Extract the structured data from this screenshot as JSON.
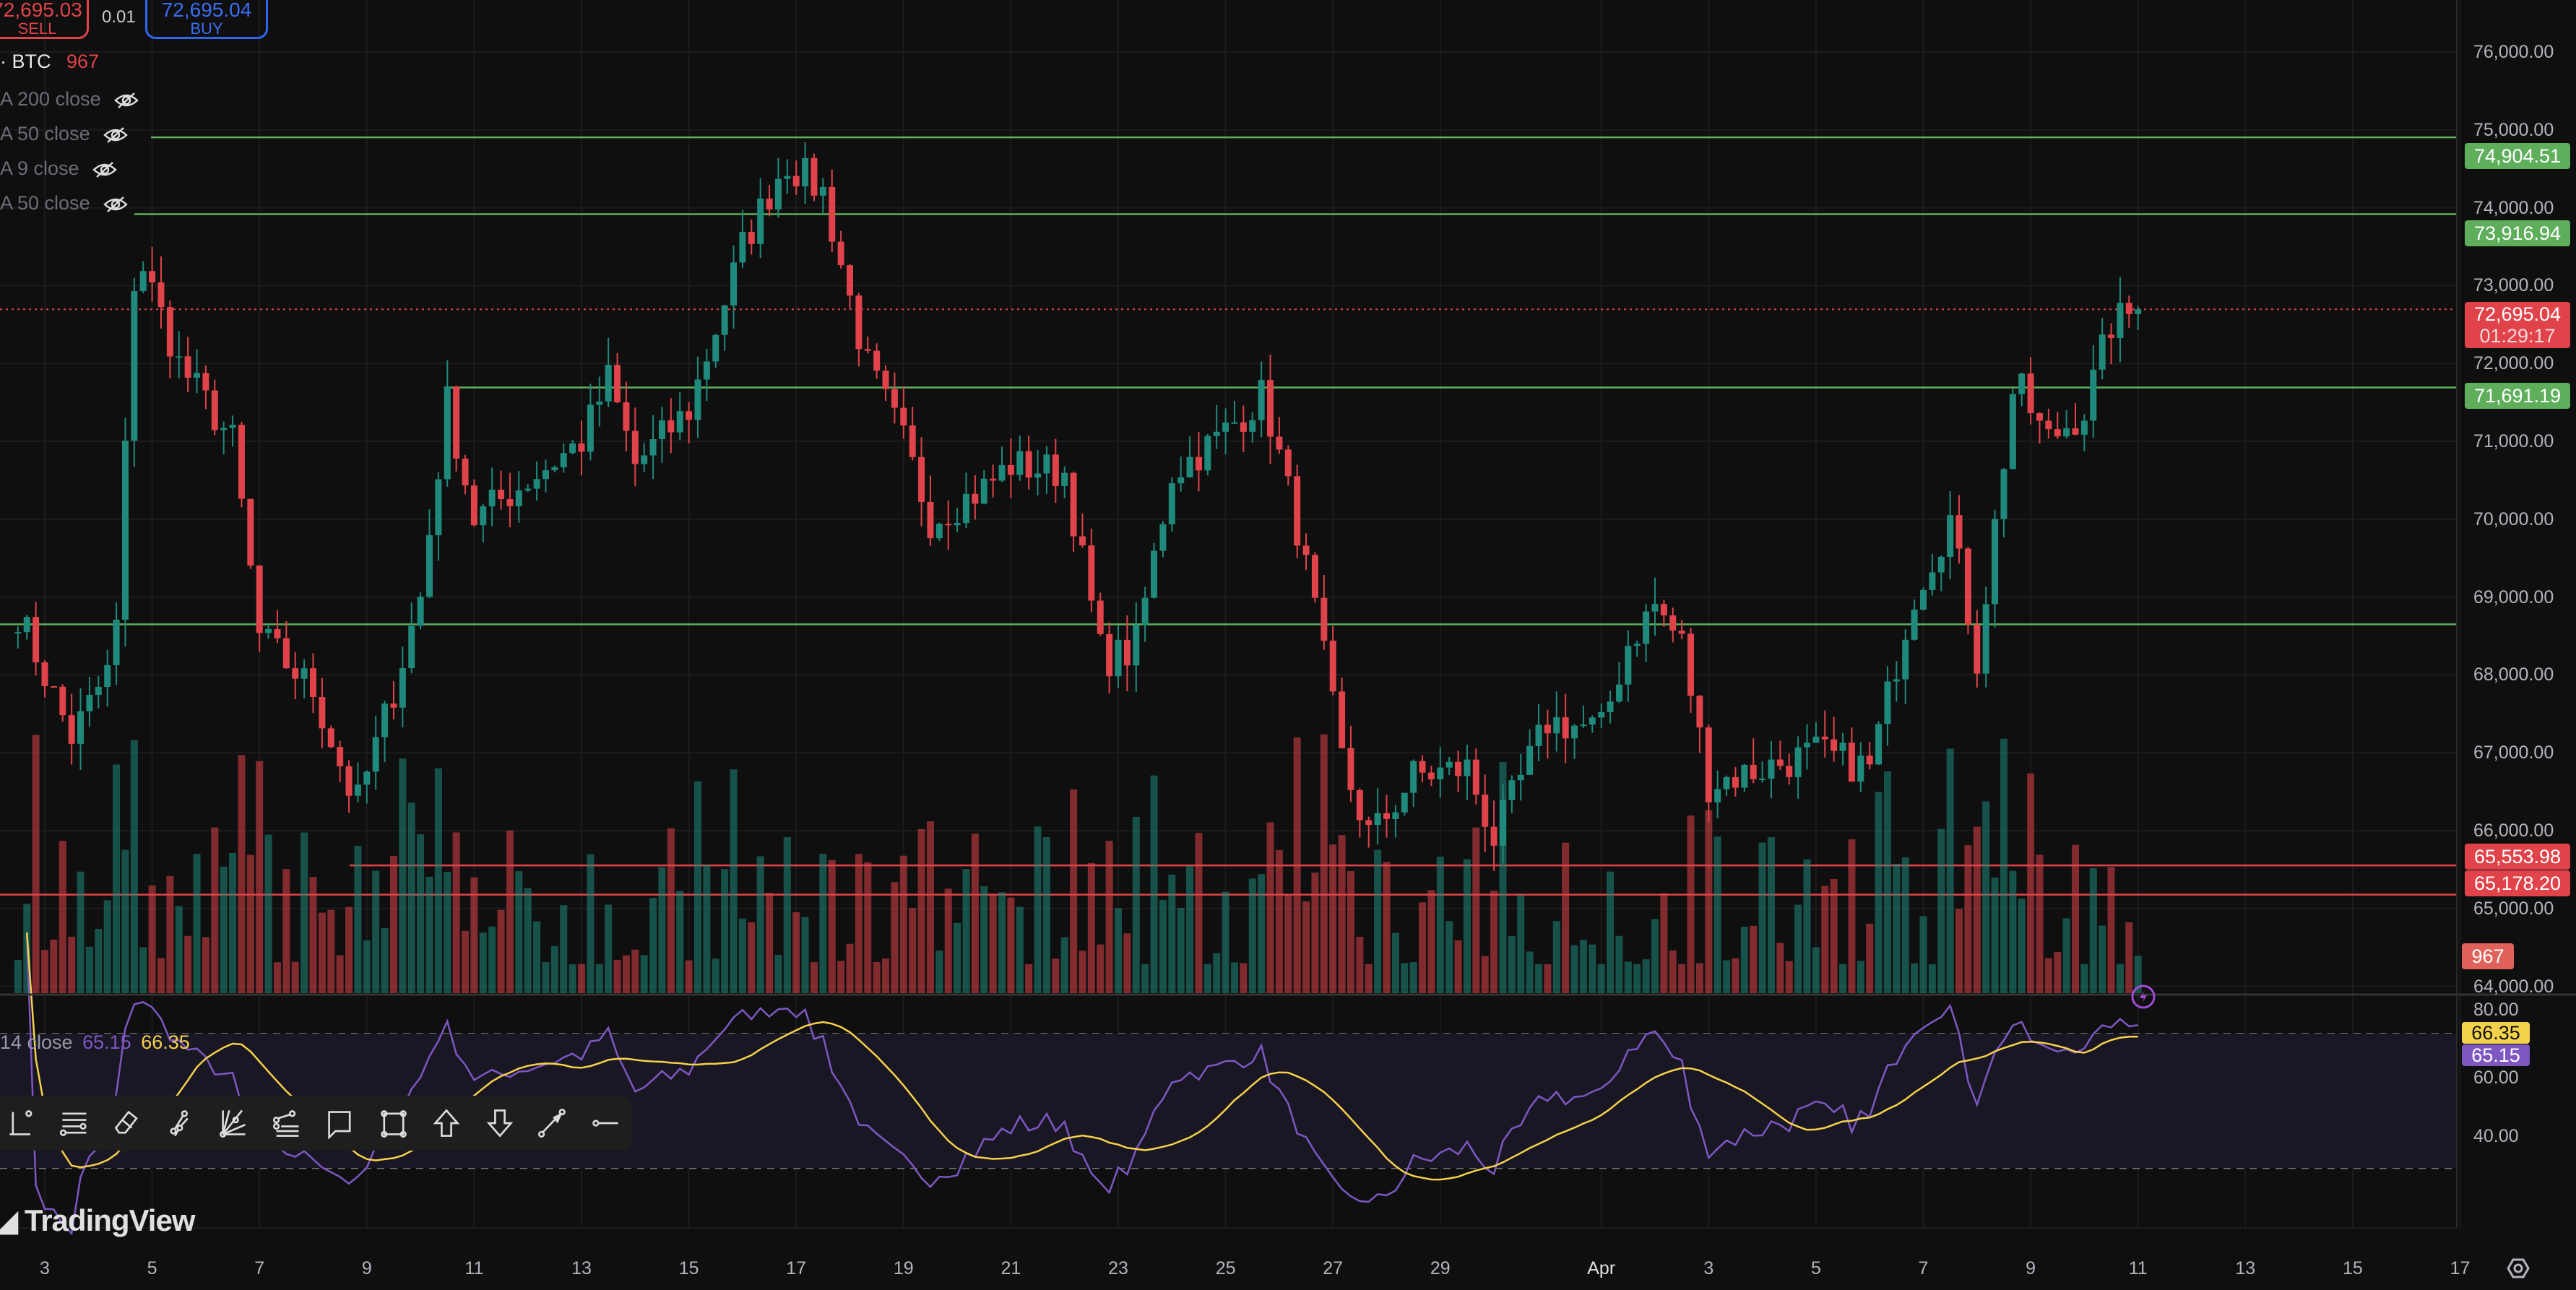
{
  "order_panel": {
    "sell_price": "72,695.03",
    "sell_label": "SELL",
    "quantity": "0.01",
    "buy_price": "72,695.04",
    "buy_label": "BUY"
  },
  "legend": {
    "symbol": "· BTC",
    "volume_value": "967",
    "indicators": [
      {
        "label": "A 200 close",
        "icon": "eye-hidden-icon"
      },
      {
        "label": "A 50 close",
        "icon": "eye-hidden-icon"
      },
      {
        "label": "A 9 close",
        "icon": "eye-hidden-icon"
      },
      {
        "label": "A 50 close",
        "icon": "eye-hidden-icon"
      }
    ]
  },
  "rsi_legend": {
    "label": "14 close",
    "rsi_value": "65.15",
    "ma_value": "66.35"
  },
  "price_axis": {
    "ticks": [
      "76,000.00",
      "75,000.00",
      "74,000.00",
      "73,000.00",
      "72,000.00",
      "71,000.00",
      "70,000.00",
      "69,000.00",
      "68,000.00",
      "67,000.00",
      "66,000.00",
      "65,000.00",
      "64,000.00"
    ]
  },
  "rsi_axis": {
    "ticks": [
      "80.00",
      "60.00",
      "40.00"
    ],
    "rsi_label": "65.15",
    "ma_label": "66.35"
  },
  "price_labels": {
    "line_1": "74,904.51",
    "line_2": "73,916.94",
    "current_price": "72,695.04",
    "countdown": "01:29:17",
    "line_3": "71,691.19",
    "line_4": "65,553.98",
    "line_5": "65,178.20",
    "volume": "967"
  },
  "time_axis": {
    "labels": [
      "3",
      "5",
      "7",
      "9",
      "11",
      "13",
      "15",
      "17",
      "19",
      "21",
      "23",
      "25",
      "27",
      "29",
      "Apr",
      "3",
      "5",
      "7",
      "9",
      "11",
      "13",
      "15",
      "17"
    ]
  },
  "toolbar": {
    "tools": [
      "vertical-line-icon",
      "horizontal-lines-icon",
      "eraser-icon",
      "parallel-channel-icon",
      "fib-fan-icon",
      "pitchfork-icon",
      "callout-icon",
      "rectangle-icon",
      "arrow-up-icon",
      "arrow-down-icon",
      "arrow-icon",
      "horizontal-ray-icon"
    ]
  },
  "branding": {
    "logo": "TradingView"
  },
  "colors": {
    "up": "#1f8a7c",
    "down": "#e0434a",
    "level_green": "#5fae5c",
    "level_red": "#e0434a",
    "rsi": "#7e57c2",
    "rsi_ma": "#f5d24b",
    "background": "#0f0f0f"
  },
  "chart_data": {
    "type": "candlestick",
    "timeframe_note": "approximate price path read from chart (March–April)",
    "x_label_days": "March 3 .. April 17",
    "price_path": [
      [
        "Mar 2.5",
        68800
      ],
      [
        "Mar 3.5",
        67200
      ],
      [
        "Mar 4.3",
        68200
      ],
      [
        "Mar 4.7",
        73500
      ],
      [
        "Mar 5.5",
        72000
      ],
      [
        "Mar 6.5",
        71000
      ],
      [
        "Mar 7",
        68500
      ],
      [
        "Mar 8",
        67800
      ],
      [
        "Mar 8.8",
        66300
      ],
      [
        "Mar 9.5",
        67800
      ],
      [
        "Mar 10",
        69000
      ],
      [
        "Mar 10.5",
        71500
      ],
      [
        "Mar 11",
        70000
      ],
      [
        "Mar 12",
        70500
      ],
      [
        "Mar 13",
        71000
      ],
      [
        "Mar 13.5",
        71800
      ],
      [
        "Mar 14",
        70700
      ],
      [
        "Mar 15",
        71400
      ],
      [
        "Mar 16",
        73500
      ],
      [
        "Mar 16.8",
        74600
      ],
      [
        "Mar 17.5",
        74200
      ],
      [
        "Mar 18.3",
        72000
      ],
      [
        "Mar 19",
        71000
      ],
      [
        "Mar 19.5",
        70000
      ],
      [
        "Mar 20.5",
        70400
      ],
      [
        "Mar 21",
        70700
      ],
      [
        "Mar 22",
        70600
      ],
      [
        "Mar 22.7",
        68200
      ],
      [
        "Mar 23.3",
        68300
      ],
      [
        "Mar 24",
        70600
      ],
      [
        "Mar 24.8",
        71000
      ],
      [
        "Mar 25.7",
        71600
      ],
      [
        "Mar 26.3",
        70000
      ],
      [
        "Mar 26.7",
        68700
      ],
      [
        "Mar 27.2",
        66800
      ],
      [
        "Mar 27.7",
        65900
      ],
      [
        "Mar 28.5",
        66700
      ],
      [
        "Mar 29.5",
        66800
      ],
      [
        "Mar 30",
        65900
      ],
      [
        "Mar 31",
        67400
      ],
      [
        "Apr 1",
        67300
      ],
      [
        "Apr 1.5",
        68400
      ],
      [
        "Apr 2",
        68900
      ],
      [
        "Apr 2.5",
        68400
      ],
      [
        "Apr 3",
        66600
      ],
      [
        "Apr 4",
        66800
      ],
      [
        "Apr 5",
        67000
      ],
      [
        "Apr 6",
        66800
      ],
      [
        "Apr 6.8",
        69000
      ],
      [
        "Apr 7.5",
        70000
      ],
      [
        "Apr 8",
        68200
      ],
      [
        "Apr 8.7",
        71800
      ],
      [
        "Apr 9.3",
        71000
      ],
      [
        "Apr 10",
        71400
      ],
      [
        "Apr 10.5",
        72500
      ],
      [
        "Apr 11",
        72695.04
      ]
    ],
    "levels": [
      74904.51,
      73916.94,
      71691.19,
      68650,
      65553.98,
      65178.2
    ],
    "current_price": 72695.04,
    "price_range": [
      64000,
      76000
    ],
    "rsi_range": [
      20,
      80
    ],
    "rsi_bands": [
      30,
      70
    ],
    "rsi": 65.15,
    "rsi_ma": 66.35
  }
}
